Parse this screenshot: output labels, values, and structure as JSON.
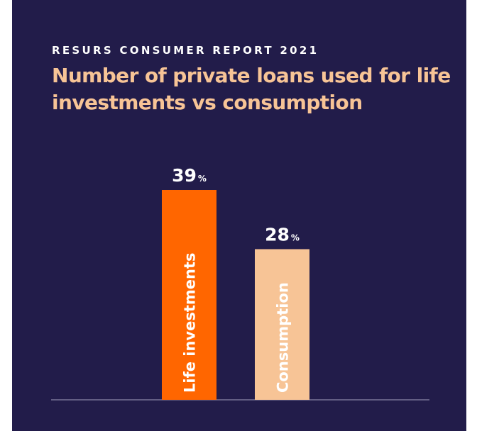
{
  "header": {
    "kicker": "RESURS CONSUMER REPORT 2021",
    "title": "Number of private loans used for life investments vs consumption"
  },
  "chart_data": {
    "type": "bar",
    "categories": [
      "Life investments",
      "Consumption"
    ],
    "values": [
      39,
      28
    ],
    "value_suffix": "%",
    "title": "Number of private loans used for life investments vs consumption",
    "xlabel": "",
    "ylabel": "",
    "ylim": [
      0,
      39
    ],
    "grid": false,
    "colors": [
      "#ff6600",
      "#f7c496"
    ],
    "label_colors": [
      "#ffffff",
      "#ffffff"
    ]
  },
  "theme": {
    "background": "#221c4a",
    "title_color": "#f7c496",
    "text_color": "#ffffff",
    "baseline_color": "#8a86a6"
  }
}
